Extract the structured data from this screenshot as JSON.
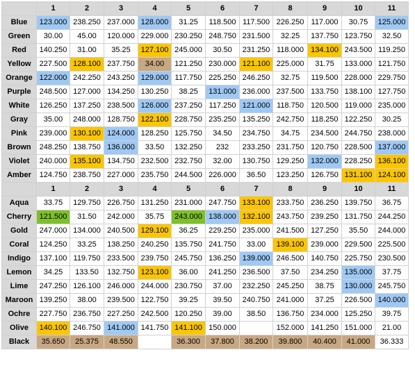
{
  "colors": {
    "blue": "#9fc9f4",
    "yellow": "#fbc600",
    "green": "#7ec028",
    "tan": "#c8a882",
    "header": "#d8d8d8"
  },
  "column_headers": [
    "",
    "1",
    "2",
    "3",
    "4",
    "5",
    "6",
    "7",
    "8",
    "9",
    "10",
    "11"
  ],
  "table1": [
    {
      "label": "Blue",
      "cells": [
        [
          "123.000",
          "blue"
        ],
        [
          "238.250",
          ""
        ],
        [
          "237.000",
          ""
        ],
        [
          "128.000",
          "blue"
        ],
        [
          "31.25",
          ""
        ],
        [
          "118.500",
          ""
        ],
        [
          "117.500",
          ""
        ],
        [
          "226.250",
          ""
        ],
        [
          "117.000",
          ""
        ],
        [
          "30.75",
          ""
        ],
        [
          "125.000",
          "blue"
        ]
      ]
    },
    {
      "label": "Green",
      "cells": [
        [
          "30.00",
          ""
        ],
        [
          "45.00",
          ""
        ],
        [
          "120.000",
          ""
        ],
        [
          "229.000",
          ""
        ],
        [
          "230.250",
          ""
        ],
        [
          "248.750",
          ""
        ],
        [
          "231.500",
          ""
        ],
        [
          "32.25",
          ""
        ],
        [
          "137.750",
          ""
        ],
        [
          "123.750",
          ""
        ],
        [
          "32.50",
          ""
        ]
      ]
    },
    {
      "label": "Red",
      "cells": [
        [
          "140.250",
          ""
        ],
        [
          "31.00",
          ""
        ],
        [
          "35.25",
          ""
        ],
        [
          "127.100",
          "yellow"
        ],
        [
          "245.000",
          ""
        ],
        [
          "30.50",
          ""
        ],
        [
          "231.250",
          ""
        ],
        [
          "118.000",
          ""
        ],
        [
          "134.100",
          "yellow"
        ],
        [
          "243.500",
          ""
        ],
        [
          "119.250",
          ""
        ]
      ]
    },
    {
      "label": "Yellow",
      "cells": [
        [
          "227.500",
          ""
        ],
        [
          "128.100",
          "yellow"
        ],
        [
          "237.750",
          ""
        ],
        [
          "34.00",
          "tan"
        ],
        [
          "121.250",
          ""
        ],
        [
          "230.000",
          ""
        ],
        [
          "121.100",
          "yellow"
        ],
        [
          "225.000",
          ""
        ],
        [
          "31.75",
          ""
        ],
        [
          "133.000",
          ""
        ],
        [
          "121.750",
          ""
        ]
      ]
    },
    {
      "label": "Orange",
      "cells": [
        [
          "122.000",
          "blue"
        ],
        [
          "242.250",
          ""
        ],
        [
          "243.250",
          ""
        ],
        [
          "129.000",
          "blue"
        ],
        [
          "117.750",
          ""
        ],
        [
          "225.250",
          ""
        ],
        [
          "246.250",
          ""
        ],
        [
          "32.75",
          ""
        ],
        [
          "119.500",
          ""
        ],
        [
          "228.000",
          ""
        ],
        [
          "229.750",
          ""
        ]
      ]
    },
    {
      "label": "Purple",
      "cells": [
        [
          "248.500",
          ""
        ],
        [
          "127.000",
          ""
        ],
        [
          "134.250",
          ""
        ],
        [
          "130.250",
          ""
        ],
        [
          "38.25",
          ""
        ],
        [
          "131.000",
          "blue"
        ],
        [
          "236.000",
          ""
        ],
        [
          "237.500",
          ""
        ],
        [
          "133.750",
          ""
        ],
        [
          "138.100",
          ""
        ],
        [
          "127.750",
          ""
        ]
      ]
    },
    {
      "label": "White",
      "cells": [
        [
          "126.250",
          ""
        ],
        [
          "137.250",
          ""
        ],
        [
          "238.500",
          ""
        ],
        [
          "126.000",
          "blue"
        ],
        [
          "237.250",
          ""
        ],
        [
          "117.250",
          ""
        ],
        [
          "121.000",
          "blue"
        ],
        [
          "118.750",
          ""
        ],
        [
          "120.500",
          ""
        ],
        [
          "119.000",
          ""
        ],
        [
          "235.000",
          ""
        ]
      ]
    },
    {
      "label": "Gray",
      "cells": [
        [
          "35.00",
          ""
        ],
        [
          "248.000",
          ""
        ],
        [
          "128.750",
          ""
        ],
        [
          "122.100",
          "yellow"
        ],
        [
          "228.750",
          ""
        ],
        [
          "235.250",
          ""
        ],
        [
          "135.250",
          ""
        ],
        [
          "242.750",
          ""
        ],
        [
          "118.250",
          ""
        ],
        [
          "122.250",
          ""
        ],
        [
          "30.25",
          ""
        ]
      ]
    },
    {
      "label": "Pink",
      "cells": [
        [
          "239.000",
          ""
        ],
        [
          "130.100",
          "yellow"
        ],
        [
          "124.000",
          "blue"
        ],
        [
          "128.250",
          ""
        ],
        [
          "125.750",
          ""
        ],
        [
          "34.50",
          ""
        ],
        [
          "234.750",
          ""
        ],
        [
          "34.75",
          ""
        ],
        [
          "234.500",
          ""
        ],
        [
          "244.750",
          ""
        ],
        [
          "238.000",
          ""
        ]
      ]
    },
    {
      "label": "Brown",
      "cells": [
        [
          "248.250",
          ""
        ],
        [
          "138.750",
          ""
        ],
        [
          "136.000",
          "blue"
        ],
        [
          "33.50",
          ""
        ],
        [
          "132.250",
          ""
        ],
        [
          "232",
          ""
        ],
        [
          "233.250",
          ""
        ],
        [
          "231.750",
          ""
        ],
        [
          "120.750",
          ""
        ],
        [
          "228.500",
          ""
        ],
        [
          "137.000",
          "blue"
        ]
      ]
    },
    {
      "label": "Violet",
      "cells": [
        [
          "240.000",
          ""
        ],
        [
          "135.100",
          "yellow"
        ],
        [
          "134.750",
          ""
        ],
        [
          "232.500",
          ""
        ],
        [
          "232.750",
          ""
        ],
        [
          "32.00",
          ""
        ],
        [
          "130.750",
          ""
        ],
        [
          "129.250",
          ""
        ],
        [
          "132.000",
          "blue"
        ],
        [
          "228.250",
          ""
        ],
        [
          "136.100",
          "yellow"
        ]
      ]
    },
    {
      "label": "Amber",
      "cells": [
        [
          "124.750",
          ""
        ],
        [
          "238.750",
          ""
        ],
        [
          "227.000",
          ""
        ],
        [
          "235.750",
          ""
        ],
        [
          "244.500",
          ""
        ],
        [
          "226.000",
          ""
        ],
        [
          "36.50",
          ""
        ],
        [
          "123.250",
          ""
        ],
        [
          "126.750",
          ""
        ],
        [
          "131.100",
          "yellow"
        ],
        [
          "124.100",
          "yellow"
        ]
      ]
    }
  ],
  "table2": [
    {
      "label": "Aqua",
      "cells": [
        [
          "33.75",
          ""
        ],
        [
          "129.750",
          ""
        ],
        [
          "226.750",
          ""
        ],
        [
          "131.250",
          ""
        ],
        [
          "231.000",
          ""
        ],
        [
          "247.750",
          ""
        ],
        [
          "133.100",
          "yellow"
        ],
        [
          "233.750",
          ""
        ],
        [
          "236.250",
          ""
        ],
        [
          "139.750",
          ""
        ],
        [
          "36.75",
          ""
        ]
      ]
    },
    {
      "label": "Cherry",
      "cells": [
        [
          "121.500",
          "green"
        ],
        [
          "31.50",
          ""
        ],
        [
          "242.000",
          ""
        ],
        [
          "35.75",
          ""
        ],
        [
          "243.000",
          "green"
        ],
        [
          "138.000",
          "blue"
        ],
        [
          "132.100",
          "yellow"
        ],
        [
          "243.750",
          ""
        ],
        [
          "239.250",
          ""
        ],
        [
          "131.750",
          ""
        ],
        [
          "244.250",
          ""
        ]
      ]
    },
    {
      "label": "Gold",
      "cells": [
        [
          "247.000",
          ""
        ],
        [
          "134.000",
          ""
        ],
        [
          "240.500",
          ""
        ],
        [
          "129.100",
          "yellow"
        ],
        [
          "36.25",
          ""
        ],
        [
          "229.250",
          ""
        ],
        [
          "235.000",
          ""
        ],
        [
          "241.500",
          ""
        ],
        [
          "127.250",
          ""
        ],
        [
          "35.50",
          ""
        ],
        [
          "244.000",
          ""
        ]
      ]
    },
    {
      "label": "Coral",
      "cells": [
        [
          "124.250",
          ""
        ],
        [
          "33.25",
          ""
        ],
        [
          "138.250",
          ""
        ],
        [
          "240.250",
          ""
        ],
        [
          "135.750",
          ""
        ],
        [
          "241.750",
          ""
        ],
        [
          "33.00",
          ""
        ],
        [
          "139.100",
          "yellow"
        ],
        [
          "239.000",
          ""
        ],
        [
          "229.500",
          ""
        ],
        [
          "225.500",
          ""
        ]
      ]
    },
    {
      "label": "Indigo",
      "cells": [
        [
          "137.100",
          ""
        ],
        [
          "119.750",
          ""
        ],
        [
          "233.500",
          ""
        ],
        [
          "239.750",
          ""
        ],
        [
          "245.750",
          ""
        ],
        [
          "136.250",
          ""
        ],
        [
          "139.000",
          "blue"
        ],
        [
          "246.500",
          ""
        ],
        [
          "140.750",
          ""
        ],
        [
          "225.750",
          ""
        ],
        [
          "230.500",
          ""
        ]
      ]
    },
    {
      "label": "Lemon",
      "cells": [
        [
          "34.25",
          ""
        ],
        [
          "133.50",
          ""
        ],
        [
          "132.750",
          ""
        ],
        [
          "123.100",
          "yellow"
        ],
        [
          "36.00",
          ""
        ],
        [
          "241.250",
          ""
        ],
        [
          "236.500",
          ""
        ],
        [
          "37.50",
          ""
        ],
        [
          "234.250",
          ""
        ],
        [
          "135.000",
          "blue"
        ],
        [
          "37.75",
          ""
        ]
      ]
    },
    {
      "label": "Lime",
      "cells": [
        [
          "247.250",
          ""
        ],
        [
          "126.100",
          ""
        ],
        [
          "246.000",
          ""
        ],
        [
          "244.000",
          ""
        ],
        [
          "230.750",
          ""
        ],
        [
          "37.00",
          ""
        ],
        [
          "232.250",
          ""
        ],
        [
          "245.250",
          ""
        ],
        [
          "38.75",
          ""
        ],
        [
          "130.000",
          "blue"
        ],
        [
          "245.750",
          ""
        ]
      ]
    },
    {
      "label": "Maroon",
      "cells": [
        [
          "139.250",
          ""
        ],
        [
          "38.00",
          ""
        ],
        [
          "239.500",
          ""
        ],
        [
          "122.750",
          ""
        ],
        [
          "39.25",
          ""
        ],
        [
          "39.50",
          ""
        ],
        [
          "240.750",
          ""
        ],
        [
          "241.000",
          ""
        ],
        [
          "37.25",
          ""
        ],
        [
          "226.500",
          ""
        ],
        [
          "140.000",
          "blue"
        ]
      ]
    },
    {
      "label": "Ochre",
      "cells": [
        [
          "227.750",
          ""
        ],
        [
          "236.750",
          ""
        ],
        [
          "227.250",
          ""
        ],
        [
          "242.500",
          ""
        ],
        [
          "120.250",
          ""
        ],
        [
          "39.00",
          ""
        ],
        [
          "38.50",
          ""
        ],
        [
          "136.750",
          ""
        ],
        [
          "234.000",
          ""
        ],
        [
          "125.250",
          ""
        ],
        [
          "39.75",
          ""
        ]
      ]
    },
    {
      "label": "Olive",
      "cells": [
        [
          "140.100",
          "yellow"
        ],
        [
          "246.750",
          ""
        ],
        [
          "141.000",
          "blue"
        ],
        [
          "141.750",
          ""
        ],
        [
          "141.100",
          "yellow"
        ],
        [
          "150.000",
          ""
        ],
        [
          "",
          ""
        ],
        [
          "152.000",
          ""
        ],
        [
          "141.250",
          ""
        ],
        [
          "151.000",
          ""
        ],
        [
          "21.00",
          ""
        ]
      ]
    },
    {
      "label": "Black",
      "cells": [
        [
          "35.650",
          "tan"
        ],
        [
          "25.375",
          "tan"
        ],
        [
          "48.550",
          "tan"
        ],
        [
          "",
          ""
        ],
        [
          "36.300",
          "tan"
        ],
        [
          "37.800",
          "tan"
        ],
        [
          "38.200",
          "tan"
        ],
        [
          "39.800",
          "tan"
        ],
        [
          "40.400",
          "tan"
        ],
        [
          "41.000",
          "tan"
        ],
        [
          "36.333",
          ""
        ]
      ]
    }
  ]
}
